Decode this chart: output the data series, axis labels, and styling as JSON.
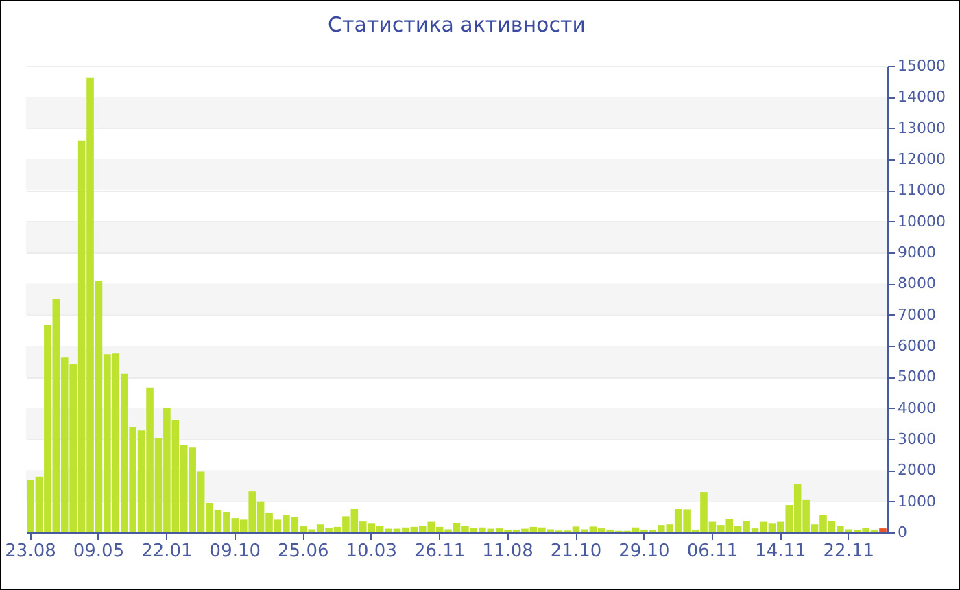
{
  "chart_data": {
    "type": "bar",
    "title": "Статистика активности",
    "categories": [
      "23.08",
      null,
      null,
      null,
      null,
      null,
      null,
      null,
      "09.05",
      null,
      null,
      null,
      null,
      null,
      null,
      null,
      "22.01",
      null,
      null,
      null,
      null,
      null,
      null,
      null,
      "09.10",
      null,
      null,
      null,
      null,
      null,
      null,
      null,
      "25.06",
      null,
      null,
      null,
      null,
      null,
      null,
      null,
      "10.03",
      null,
      null,
      null,
      null,
      null,
      null,
      null,
      "26.11",
      null,
      null,
      null,
      null,
      null,
      null,
      null,
      "11.08",
      null,
      null,
      null,
      null,
      null,
      null,
      null,
      "21.10",
      null,
      null,
      null,
      null,
      null,
      null,
      null,
      "29.10",
      null,
      null,
      null,
      null,
      null,
      null,
      null,
      "06.11",
      null,
      null,
      null,
      null,
      null,
      null,
      null,
      "14.11",
      null,
      null,
      null,
      null,
      null,
      null,
      null,
      "22.11",
      null,
      null,
      null,
      null
    ],
    "values": [
      1690,
      1790,
      6660,
      7500,
      5620,
      5410,
      12600,
      14630,
      8090,
      5730,
      5750,
      5100,
      3380,
      3280,
      4660,
      3040,
      4010,
      3620,
      2820,
      2730,
      1950,
      950,
      720,
      660,
      460,
      410,
      1320,
      1000,
      620,
      410,
      560,
      490,
      210,
      100,
      260,
      150,
      180,
      520,
      750,
      350,
      280,
      220,
      120,
      120,
      160,
      180,
      210,
      340,
      180,
      100,
      290,
      210,
      150,
      160,
      120,
      130,
      90,
      90,
      120,
      180,
      160,
      100,
      60,
      60,
      190,
      100,
      190,
      130,
      90,
      50,
      50,
      160,
      90,
      90,
      240,
      260,
      750,
      740,
      90,
      1300,
      340,
      240,
      440,
      200,
      370,
      130,
      340,
      280,
      340,
      880,
      1560,
      1040,
      260,
      560,
      370,
      200,
      100,
      90,
      150,
      90,
      130
    ],
    "colors": [
      "#bde22f",
      "#bde22f",
      "#bde22f",
      "#bde22f",
      "#bde22f",
      "#bde22f",
      "#bde22f",
      "#bde22f",
      "#bde22f",
      "#bde22f",
      "#bde22f",
      "#bde22f",
      "#bde22f",
      "#bde22f",
      "#bde22f",
      "#bde22f",
      "#bde22f",
      "#bde22f",
      "#bde22f",
      "#bde22f",
      "#bde22f",
      "#bde22f",
      "#bde22f",
      "#bde22f",
      "#bde22f",
      "#bde22f",
      "#bde22f",
      "#bde22f",
      "#bde22f",
      "#bde22f",
      "#bde22f",
      "#bde22f",
      "#bde22f",
      "#bde22f",
      "#bde22f",
      "#bde22f",
      "#bde22f",
      "#bde22f",
      "#bde22f",
      "#bde22f",
      "#bde22f",
      "#bde22f",
      "#bde22f",
      "#bde22f",
      "#bde22f",
      "#bde22f",
      "#bde22f",
      "#bde22f",
      "#bde22f",
      "#bde22f",
      "#bde22f",
      "#bde22f",
      "#bde22f",
      "#bde22f",
      "#bde22f",
      "#bde22f",
      "#bde22f",
      "#bde22f",
      "#bde22f",
      "#bde22f",
      "#bde22f",
      "#bde22f",
      "#bde22f",
      "#bde22f",
      "#bde22f",
      "#bde22f",
      "#bde22f",
      "#bde22f",
      "#bde22f",
      "#bde22f",
      "#bde22f",
      "#bde22f",
      "#bde22f",
      "#bde22f",
      "#bde22f",
      "#bde22f",
      "#bde22f",
      "#bde22f",
      "#bde22f",
      "#bde22f",
      "#bde22f",
      "#bde22f",
      "#bde22f",
      "#bde22f",
      "#bde22f",
      "#bde22f",
      "#bde22f",
      "#bde22f",
      "#bde22f",
      "#bde22f",
      "#bde22f",
      "#bde22f",
      "#bde22f",
      "#bde22f",
      "#bde22f",
      "#bde22f",
      "#bde22f",
      "#bde22f",
      "#bde22f",
      "#bde22f",
      "#e8552a"
    ],
    "ylim": [
      0,
      15000
    ],
    "yticks": [
      0,
      1000,
      2000,
      3000,
      4000,
      5000,
      6000,
      7000,
      8000,
      9000,
      10000,
      11000,
      12000,
      13000,
      14000,
      15000
    ],
    "grid": "y"
  }
}
